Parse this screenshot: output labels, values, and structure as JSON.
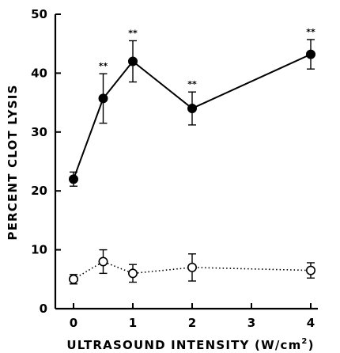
{
  "chart_data": {
    "type": "line",
    "xlabel": "ULTRASOUND INTENSITY (W/cm",
    "xlabel_superscript": "2",
    "xlabel_close": ")",
    "ylabel": "PERCENT CLOT LYSIS",
    "xlim": [
      0,
      4
    ],
    "ylim": [
      0,
      50
    ],
    "x_ticks": [
      0,
      1,
      2,
      3,
      4
    ],
    "y_ticks": [
      0,
      10,
      20,
      30,
      40,
      50
    ],
    "grid": false,
    "series": [
      {
        "marker": "filled-circle",
        "line_style": "solid",
        "color": "#000000",
        "x": [
          0,
          0.5,
          1,
          2,
          4
        ],
        "y": [
          22,
          35.7,
          42,
          34,
          43.2
        ],
        "error": [
          1.2,
          4.2,
          3.5,
          2.8,
          2.5
        ],
        "significance": [
          "",
          "**",
          "**",
          "**",
          "**"
        ]
      },
      {
        "marker": "open-circle",
        "line_style": "dotted",
        "color": "#000000",
        "x": [
          0,
          0.5,
          1,
          2,
          4
        ],
        "y": [
          5,
          8,
          6,
          7,
          6.5
        ],
        "error": [
          0.8,
          2,
          1.5,
          2.3,
          1.3
        ]
      }
    ]
  }
}
